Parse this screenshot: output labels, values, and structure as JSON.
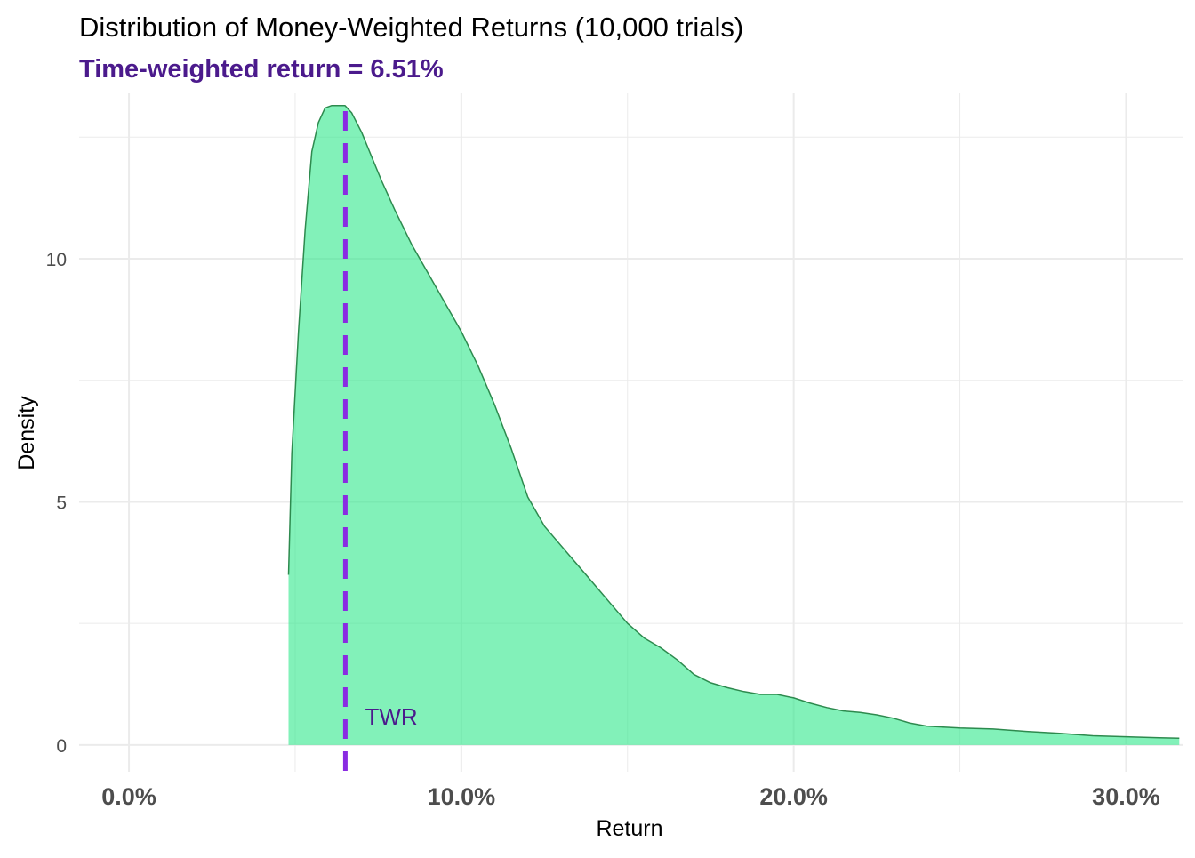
{
  "chart_data": {
    "type": "area",
    "title": "Distribution of Money-Weighted Returns (10,000 trials)",
    "subtitle": "Time-weighted return = 6.51%",
    "xlabel": "Return",
    "ylabel": "Density",
    "xlim": [
      -0.015,
      0.317
    ],
    "ylim": [
      -0.55,
      13.4
    ],
    "x_ticks": [
      0.0,
      0.1,
      0.2,
      0.3
    ],
    "x_tick_labels": [
      "0.0%",
      "10.0%",
      "20.0%",
      "30.0%"
    ],
    "y_ticks": [
      0,
      5,
      10
    ],
    "y_tick_labels": [
      "0",
      "5",
      "10"
    ],
    "grid": true,
    "twr_line": {
      "x": 0.0651,
      "label": "TWR",
      "label_x": 0.071,
      "label_y": 0.58
    },
    "colors": {
      "fill": "#2EE88A",
      "outline": "#2D8A4E",
      "twr_line": "#8A2BE2",
      "subtitle": "#4B1A8C",
      "twr_label": "#4B1A8C",
      "grid": "#EBEBEB",
      "tick_label": "#4D4D4D"
    },
    "series": [
      {
        "x": [
          0.048,
          0.049,
          0.051,
          0.053,
          0.055,
          0.057,
          0.059,
          0.061,
          0.063,
          0.065,
          0.067,
          0.07,
          0.073,
          0.076,
          0.08,
          0.085,
          0.09,
          0.095,
          0.1,
          0.105,
          0.11,
          0.115,
          0.12,
          0.125,
          0.13,
          0.135,
          0.14,
          0.145,
          0.15,
          0.155,
          0.16,
          0.165,
          0.17,
          0.175,
          0.18,
          0.185,
          0.19,
          0.195,
          0.2,
          0.205,
          0.21,
          0.215,
          0.22,
          0.225,
          0.23,
          0.235,
          0.24,
          0.245,
          0.25,
          0.26,
          0.27,
          0.28,
          0.29,
          0.3,
          0.31,
          0.316
        ],
        "y": [
          3.5,
          6.0,
          8.5,
          10.6,
          12.2,
          12.8,
          13.1,
          13.15,
          13.15,
          13.15,
          13.0,
          12.6,
          12.1,
          11.6,
          11.0,
          10.3,
          9.7,
          9.1,
          8.5,
          7.8,
          7.0,
          6.1,
          5.1,
          4.5,
          4.1,
          3.7,
          3.3,
          2.9,
          2.5,
          2.2,
          2.0,
          1.75,
          1.45,
          1.28,
          1.18,
          1.1,
          1.04,
          1.04,
          0.97,
          0.86,
          0.77,
          0.7,
          0.67,
          0.62,
          0.55,
          0.45,
          0.39,
          0.37,
          0.35,
          0.33,
          0.28,
          0.24,
          0.19,
          0.17,
          0.15,
          0.14
        ]
      }
    ]
  }
}
